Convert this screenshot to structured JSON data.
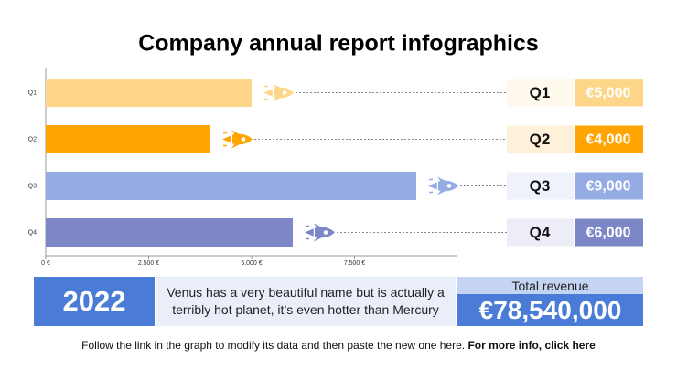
{
  "chart_data": {
    "type": "bar",
    "orientation": "horizontal",
    "title": "Company annual report infographics",
    "categories": [
      "Q1",
      "Q2",
      "Q3",
      "Q4"
    ],
    "values": [
      5000,
      4000,
      9000,
      6000
    ],
    "value_labels": [
      "€5,000",
      "€4,000",
      "€9,000",
      "€6,000"
    ],
    "colors": [
      "#fdd68a",
      "#ffa400",
      "#95abe4",
      "#7d87c7"
    ],
    "xlim": [
      0,
      10000
    ],
    "xticks": [
      {
        "value": 0,
        "label": "0 €"
      },
      {
        "value": 2500,
        "label": "2.500 €"
      },
      {
        "value": 5000,
        "label": "5.000 €"
      },
      {
        "value": 7500,
        "label": "7.500 €"
      }
    ],
    "grid": false
  },
  "summary": {
    "year": "2022",
    "description": "Venus has a very beautiful name but is actually a terribly hot planet, it’s even hotter than Mercury",
    "total_label": "Total revenue",
    "total_value": "€78,540,000"
  },
  "footer": {
    "text": "Follow the link in the graph to modify its data and then paste the new one here.",
    "link": "For more info, click here"
  }
}
